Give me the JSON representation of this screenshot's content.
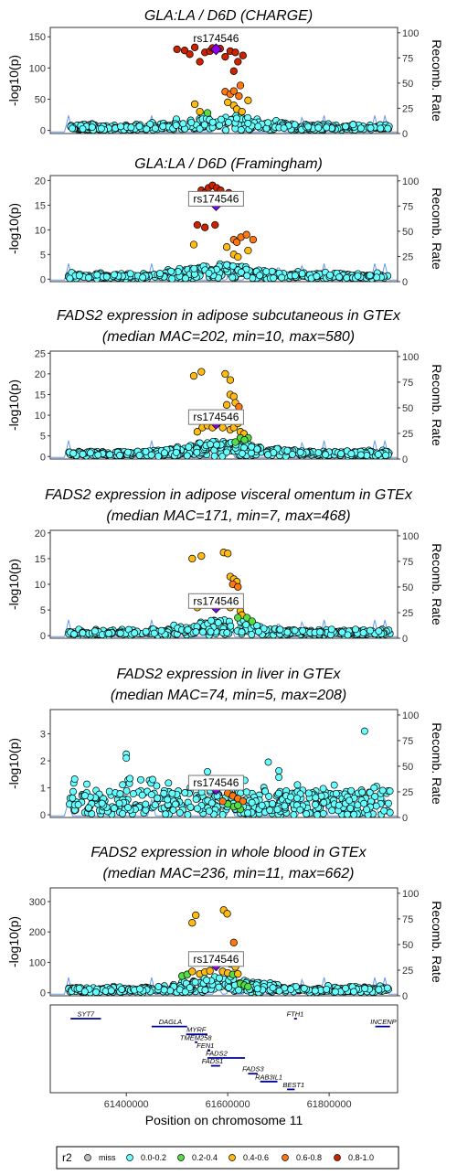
{
  "colors": {
    "miss": "#bdbdbd",
    "r2_0_02": "#66ffff",
    "r2_02_04": "#55dd44",
    "r2_04_06": "#ffbb11",
    "r2_06_08": "#ff7711",
    "r2_08_10": "#cc2200",
    "lead": "#8800ee",
    "recomb": "#6699ee"
  },
  "chart_data": {
    "type": "scatter",
    "lead_snp": "rs174546",
    "x_axis": {
      "label": "Position on chromosome 11",
      "ticks": [
        61400000,
        61600000,
        61800000
      ],
      "range": [
        61250000,
        61935000
      ]
    },
    "recomb_axis": {
      "label": "Recomb. Rate",
      "ticks": [
        0,
        25,
        50,
        75,
        100
      ],
      "range": [
        0,
        100
      ]
    },
    "legend": {
      "title": "r2",
      "items": [
        "miss",
        "0.0-0.2",
        "0.2-0.4",
        "0.4-0.6",
        "0.6-0.8",
        "0.8-1.0"
      ]
    },
    "panels": [
      {
        "title": [
          "GLA:LA / D6D (CHARGE)"
        ],
        "ylabel": "-log10(p)",
        "ylim": [
          -5,
          165
        ],
        "yticks": [
          0,
          50,
          100,
          150
        ],
        "lead": [
          61577000,
          130
        ],
        "points": [
          [
            61500000,
            130
          ],
          [
            61515000,
            128
          ],
          [
            61525000,
            122
          ],
          [
            61535000,
            133
          ],
          [
            61545000,
            110
          ],
          [
            61555000,
            125
          ],
          [
            61565000,
            127
          ],
          [
            61570000,
            132
          ],
          [
            61585000,
            131
          ],
          [
            61595000,
            118
          ],
          [
            61605000,
            127
          ],
          [
            61615000,
            125
          ],
          [
            61620000,
            110
          ],
          [
            61630000,
            120
          ],
          [
            61612000,
            95
          ],
          [
            61595000,
            62
          ],
          [
            61605000,
            58
          ],
          [
            61612000,
            63
          ],
          [
            61622000,
            55
          ],
          [
            61640000,
            48
          ],
          [
            61535000,
            42
          ],
          [
            61545000,
            30
          ],
          [
            61560000,
            28
          ],
          [
            61600000,
            45
          ],
          [
            61612000,
            40
          ],
          [
            61618000,
            34
          ],
          [
            61628000,
            30
          ],
          [
            61625000,
            72
          ]
        ]
      },
      {
        "title": [
          "GLA:LA / D6D (Framingham)"
        ],
        "ylabel": "-log10(p)",
        "ylim": [
          -0.5,
          21
        ],
        "yticks": [
          0,
          5,
          10,
          15,
          20
        ],
        "lead": [
          61577000,
          15
        ],
        "points": [
          [
            61540000,
            17
          ],
          [
            61548000,
            18
          ],
          [
            61555000,
            17.5
          ],
          [
            61562000,
            18.5
          ],
          [
            61570000,
            19
          ],
          [
            61578000,
            18.5
          ],
          [
            61586000,
            18
          ],
          [
            61594000,
            17
          ],
          [
            61602000,
            17.5
          ],
          [
            61610000,
            16.5
          ],
          [
            61616000,
            16
          ],
          [
            61596000,
            15.8
          ],
          [
            61540000,
            11
          ],
          [
            61555000,
            10.5
          ],
          [
            61575000,
            11
          ],
          [
            61612000,
            8
          ],
          [
            61618000,
            7.5
          ],
          [
            61626000,
            8.5
          ],
          [
            61637000,
            9
          ],
          [
            61650000,
            8
          ],
          [
            61533000,
            7
          ],
          [
            61598000,
            6.5
          ],
          [
            61612000,
            5
          ],
          [
            61620000,
            4.5
          ],
          [
            61640000,
            5.8
          ]
        ]
      },
      {
        "title": [
          "FADS2 expression in adipose subcutaneous in GTEx",
          "(median MAC=202, min=10, max=580)"
        ],
        "ylabel": "-log10(p)",
        "ylim": [
          -0.6,
          25.5
        ],
        "yticks": [
          0,
          5,
          10,
          15,
          20,
          25
        ],
        "lead": [
          61577000,
          8
        ],
        "points": [
          [
            61533000,
            19.5
          ],
          [
            61548000,
            20.5
          ],
          [
            61595000,
            20
          ],
          [
            61605000,
            18.5
          ],
          [
            61605000,
            15
          ],
          [
            61612000,
            14.5
          ],
          [
            61615000,
            13
          ],
          [
            61622000,
            12
          ],
          [
            61598000,
            12.5
          ],
          [
            61620000,
            10
          ],
          [
            61540000,
            6
          ],
          [
            61550000,
            7
          ],
          [
            61560000,
            7.5
          ],
          [
            61570000,
            7
          ],
          [
            61590000,
            7
          ],
          [
            61605000,
            6.5
          ],
          [
            61612000,
            7
          ],
          [
            61620000,
            8
          ],
          [
            61625000,
            6
          ],
          [
            61632000,
            5.5
          ],
          [
            61640000,
            4.5
          ],
          [
            61625000,
            4.5
          ],
          [
            61633000,
            4
          ],
          [
            61615000,
            3.5
          ]
        ]
      },
      {
        "title": [
          "FADS2 expression in adipose visceral omentum in GTEx",
          "(median MAC=171, min=7, max=468)"
        ],
        "ylabel": "-log10(p)",
        "ylim": [
          -0.5,
          20.5
        ],
        "yticks": [
          0,
          5,
          10,
          15,
          20
        ],
        "lead": [
          61577000,
          5.5
        ],
        "points": [
          [
            61530000,
            15
          ],
          [
            61548000,
            15.5
          ],
          [
            61592000,
            16.2
          ],
          [
            61600000,
            16
          ],
          [
            61605000,
            11.5
          ],
          [
            61612000,
            11
          ],
          [
            61618000,
            10.5
          ],
          [
            61610000,
            10
          ],
          [
            61620000,
            9.5
          ],
          [
            61540000,
            5.5
          ],
          [
            61555000,
            6
          ],
          [
            61565000,
            6.5
          ],
          [
            61590000,
            6
          ],
          [
            61605000,
            5.5
          ],
          [
            61615000,
            6
          ],
          [
            61625000,
            4.8
          ],
          [
            61628000,
            4
          ],
          [
            61638000,
            3.5
          ],
          [
            61648000,
            2.8
          ],
          [
            61620000,
            3.5
          ]
        ]
      },
      {
        "title": [
          "FADS2 expression in liver in GTEx",
          "(median MAC=74, min=5, max=208)"
        ],
        "ylabel": "-log10(p)",
        "ylim": [
          -0.1,
          3.9
        ],
        "yticks": [
          0,
          1,
          2,
          3
        ],
        "lead": [
          61577000,
          0.95
        ],
        "points": [
          [
            61600000,
            0.8
          ],
          [
            61610000,
            0.7
          ],
          [
            61620000,
            0.6
          ],
          [
            61630000,
            0.5
          ],
          [
            61612000,
            0.3
          ],
          [
            61625000,
            0.2
          ],
          [
            61600000,
            0.4
          ],
          [
            61590000,
            0.5
          ],
          [
            61620000,
            0.35
          ]
        ]
      },
      {
        "title": [
          "FADS2 expression in whole blood in GTEx",
          "(median MAC=236, min=11, max=662)"
        ],
        "ylabel": "-log10(p)",
        "ylim": [
          -10,
          345
        ],
        "yticks": [
          0,
          100,
          200,
          300
        ],
        "lead": [
          61577000,
          90
        ],
        "points": [
          [
            61530000,
            230
          ],
          [
            61537000,
            255
          ],
          [
            61592000,
            272
          ],
          [
            61599000,
            260
          ],
          [
            61510000,
            55
          ],
          [
            61520000,
            60
          ],
          [
            61530000,
            70
          ],
          [
            61545000,
            62
          ],
          [
            61555000,
            68
          ],
          [
            61565000,
            72
          ],
          [
            61590000,
            70
          ],
          [
            61600000,
            65
          ],
          [
            61610000,
            60
          ],
          [
            61620000,
            62
          ],
          [
            61612000,
            165
          ],
          [
            61605000,
            95
          ],
          [
            61615000,
            85
          ],
          [
            61625000,
            30
          ],
          [
            61633000,
            25
          ],
          [
            61640000,
            20
          ]
        ]
      }
    ],
    "genes": [
      {
        "name": "SYT7",
        "start": 61290000,
        "end": 61350000,
        "row": 0,
        "label_pos": 61320000
      },
      {
        "name": "DAGLA",
        "start": 61450000,
        "end": 61520000,
        "row": 1,
        "label_pos": 61487000
      },
      {
        "name": "MYRF",
        "start": 61518000,
        "end": 61560000,
        "row": 2,
        "label_pos": 61538000
      },
      {
        "name": "TMEM258",
        "start": 61535000,
        "end": 61538000,
        "row": 3,
        "label_pos": 61537000
      },
      {
        "name": "FEN1",
        "start": 61560000,
        "end": 61564000,
        "row": 4,
        "label_pos": 61556000
      },
      {
        "name": "FADS2",
        "start": 61560000,
        "end": 61634000,
        "row": 5,
        "label_pos": 61578000
      },
      {
        "name": "FADS1",
        "start": 61567000,
        "end": 61585000,
        "row": 6,
        "label_pos": 61570000
      },
      {
        "name": "FADS3",
        "start": 61640000,
        "end": 61659000,
        "row": 7,
        "label_pos": 61650000
      },
      {
        "name": "RAB3IL1",
        "start": 61664000,
        "end": 61698000,
        "row": 8,
        "label_pos": 61681000
      },
      {
        "name": "BEST1",
        "start": 61717000,
        "end": 61732000,
        "row": 9,
        "label_pos": 61730000
      },
      {
        "name": "FTH1",
        "start": 61731000,
        "end": 61735000,
        "row": 0,
        "label_pos": 61733000
      },
      {
        "name": "INCENP",
        "start": 61891000,
        "end": 61920000,
        "row": 1,
        "label_pos": 61907000
      }
    ]
  }
}
